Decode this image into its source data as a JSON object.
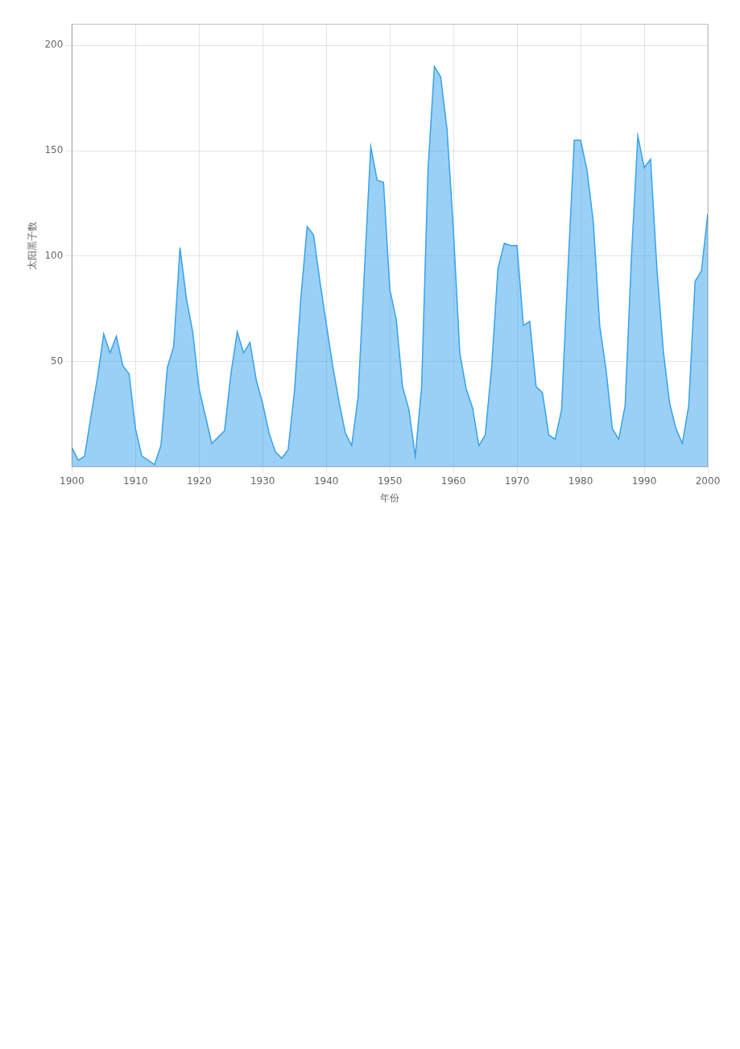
{
  "chart_data": {
    "type": "area",
    "x_label": "年份",
    "y_label": "太阳黑子数",
    "x": [
      1900,
      1901,
      1902,
      1903,
      1904,
      1905,
      1906,
      1907,
      1908,
      1909,
      1910,
      1911,
      1912,
      1913,
      1914,
      1915,
      1916,
      1917,
      1918,
      1919,
      1920,
      1921,
      1922,
      1923,
      1924,
      1925,
      1926,
      1927,
      1928,
      1929,
      1930,
      1931,
      1932,
      1933,
      1934,
      1935,
      1936,
      1937,
      1938,
      1939,
      1940,
      1941,
      1942,
      1943,
      1944,
      1945,
      1946,
      1947,
      1948,
      1949,
      1950,
      1951,
      1952,
      1953,
      1954,
      1955,
      1956,
      1957,
      1958,
      1959,
      1960,
      1961,
      1962,
      1963,
      1964,
      1965,
      1966,
      1967,
      1968,
      1969,
      1970,
      1971,
      1972,
      1973,
      1974,
      1975,
      1976,
      1977,
      1978,
      1979,
      1980,
      1981,
      1982,
      1983,
      1984,
      1985,
      1986,
      1987,
      1988,
      1989,
      1990,
      1991,
      1992,
      1993,
      1994,
      1995,
      1996,
      1997,
      1998,
      1999,
      2000
    ],
    "values": [
      9,
      3,
      5,
      24,
      42,
      63,
      54,
      62,
      48,
      44,
      18,
      5,
      3,
      1,
      10,
      47,
      57,
      104,
      80,
      64,
      37,
      24,
      11,
      14,
      17,
      44,
      64,
      54,
      59,
      41,
      30,
      16,
      7,
      4,
      8,
      36,
      80,
      114,
      110,
      88,
      68,
      48,
      31,
      16,
      10,
      33,
      93,
      152,
      136,
      135,
      84,
      70,
      38,
      27,
      5,
      38,
      141,
      190,
      185,
      160,
      112,
      54,
      37,
      28,
      10,
      15,
      47,
      94,
      106,
      105,
      105,
      67,
      69,
      38,
      35,
      15,
      13,
      27,
      93,
      155,
      155,
      141,
      116,
      67,
      46,
      18,
      13,
      29,
      100,
      157,
      142,
      146,
      94,
      55,
      30,
      18,
      11,
      29,
      88,
      93,
      120
    ],
    "xlim": [
      1900,
      2000
    ],
    "xticks": [
      1900,
      1910,
      1920,
      1930,
      1940,
      1950,
      1960,
      1970,
      1980,
      1990,
      2000
    ],
    "ylim": [
      0,
      210
    ],
    "yticks": [
      50,
      100,
      150,
      200
    ],
    "grid": true
  }
}
